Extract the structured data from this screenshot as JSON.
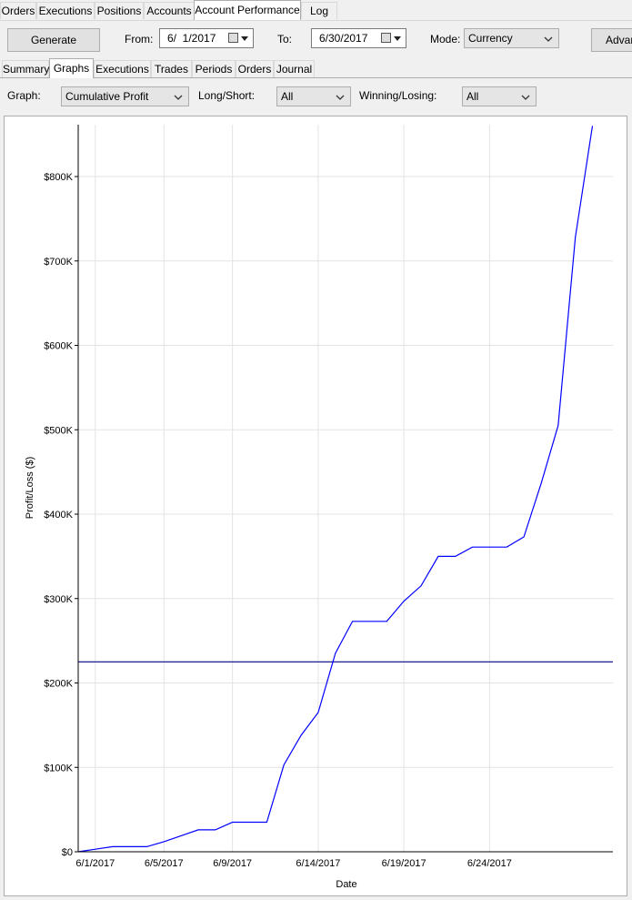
{
  "top_tabs": [
    {
      "label": "Orders"
    },
    {
      "label": "Executions"
    },
    {
      "label": "Positions"
    },
    {
      "label": "Accounts"
    },
    {
      "label": "Account Performance"
    },
    {
      "label": "Log"
    }
  ],
  "toolbar": {
    "generate_label": "Generate",
    "from_label": "From:",
    "from_value": "6/  1/2017",
    "to_label": "To:",
    "to_value": "6/30/2017",
    "mode_label": "Mode:",
    "mode_value": "Currency",
    "advanced_label": "Advan"
  },
  "sub_tabs": [
    {
      "label": "Summary"
    },
    {
      "label": "Graphs"
    },
    {
      "label": "Executions"
    },
    {
      "label": "Trades"
    },
    {
      "label": "Periods"
    },
    {
      "label": "Orders"
    },
    {
      "label": "Journal"
    }
  ],
  "filters": {
    "graph_label": "Graph:",
    "graph_value": "Cumulative Profit",
    "longshort_label": "Long/Short:",
    "longshort_value": "All",
    "winlose_label": "Winning/Losing:",
    "winlose_value": "All"
  },
  "chart_data": {
    "type": "line",
    "title": "",
    "xlabel": "Date",
    "ylabel": "Profit/Loss ($)",
    "x_tick_labels": [
      "6/1/2017",
      "6/5/2017",
      "6/9/2017",
      "6/14/2017",
      "6/19/2017",
      "6/24/2017"
    ],
    "y_tick_labels": [
      "$0",
      "$100K",
      "$200K",
      "$300K",
      "$400K",
      "$500K",
      "$600K",
      "$700K",
      "$800K"
    ],
    "ylim": [
      0,
      860000
    ],
    "grid": true,
    "line_color": "#0000ff",
    "series": [
      {
        "values": [
          0,
          3000,
          6000,
          6000,
          6000,
          12000,
          19000,
          26000,
          26000,
          35000,
          35000,
          35000,
          103000,
          138000,
          165000,
          235000,
          273000,
          273000,
          273000,
          297000,
          315000,
          350000,
          350000,
          361000,
          361000,
          361000,
          373000,
          436000,
          505000,
          728000,
          860000
        ]
      }
    ],
    "reference_line": {
      "value": 225000,
      "color": "#000080"
    }
  }
}
